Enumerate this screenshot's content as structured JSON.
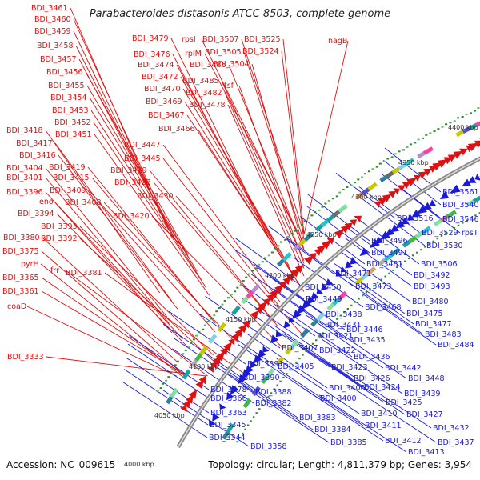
{
  "title": "Parabacteroides distasonis ATCC 8503, complete genome",
  "accession_label": "Accession: NC_009615",
  "topology_label": "Topology: circular; Length: 4,811,379 bp; Genes: 3,954",
  "colors": {
    "forward": "#dd1111",
    "reverse": "#1a1ad8",
    "backbone": "#888888"
  },
  "kbp_ticks": [
    "4000 kbp",
    "4050 kbp",
    "4100 kbp",
    "4150 kbp",
    "4200 kbp",
    "4250 kbp",
    "4300 kbp",
    "4350 kbp",
    "4400 kbp"
  ],
  "red_labels": [
    "BDI_3461",
    "BDI_3460",
    "BDI_3459",
    "BDI_3458",
    "BDI_3457",
    "BDI_3456",
    "BDI_3455",
    "BDI_3454",
    "BDI_3453",
    "BDI_3452",
    "BDI_3451",
    "BDI_3418",
    "BDI_3417",
    "BDI_3416",
    "BDI_3404",
    "BDI_3401",
    "BDI_3396",
    "eno",
    "BDI_3394",
    "BDI_3380",
    "BDI_3375",
    "pyrH",
    "BDI_3365",
    "BDI_3361",
    "coaD",
    "BDI_3333",
    "BDI_3419",
    "BDI_3415",
    "BDI_3409",
    "BDI_3408",
    "BDI_3393",
    "BDI_3392",
    "frr",
    "BDI_3381",
    "BDI_3479",
    "BDI_3476",
    "BDI_3474",
    "BDI_3472",
    "BDI_3470",
    "BDI_3469",
    "BDI_3467",
    "BDI_3466",
    "BDI_3447",
    "BDI_3445",
    "BDI_3429",
    "BDI_3428",
    "BDI_3430",
    "BDI_3420",
    "rpsI",
    "rplM",
    "BDI_3486",
    "BDI_3485",
    "BDI_3482",
    "BDI_3478",
    "BDI_3507",
    "BDI_3505",
    "BDI_3504",
    "tsf",
    "BDI_3525",
    "BDI_3524",
    "nagB"
  ],
  "blue_labels": [
    "BDI_3561",
    "BDI_3540",
    "BDI_3516",
    "BDI_3546",
    "BDI_3529",
    "rpsT",
    "BDI_3530",
    "BDI_3496",
    "BDI_3491",
    "BDI_3481",
    "BDI_3506",
    "BDI_3471",
    "BDI_3492",
    "BDI_3450",
    "BDI_3473",
    "BDI_3493",
    "BDI_3449",
    "BDI_3468",
    "BDI_3480",
    "BDI_3438",
    "BDI_3475",
    "BDI_3431",
    "BDI_3477",
    "BDI_3446",
    "BDI_3421",
    "BDI_3483",
    "BDI_3435",
    "BDI_3484",
    "BDI_3407",
    "BDI_3422",
    "BDI_3436",
    "BDI_3391",
    "BDI_3405",
    "BDI_3423",
    "BDI_3442",
    "BDI_3390",
    "BDI_3426",
    "BDI_3448",
    "BDI_3406",
    "BDI_3424",
    "BDI_3378",
    "BDI_3388",
    "BDI_3439",
    "BDI_3366",
    "BDI_3382",
    "BDI_3400",
    "BDI_3425",
    "BDI_3363",
    "BDI_3410",
    "BDI_3427",
    "BDI_3383",
    "BDI_3345",
    "BDI_3411",
    "BDI_3432",
    "BDI_3384",
    "BDI_3344",
    "BDI_3412",
    "BDI_3437",
    "BDI_3358",
    "BDI_3385",
    "BDI_3413"
  ]
}
